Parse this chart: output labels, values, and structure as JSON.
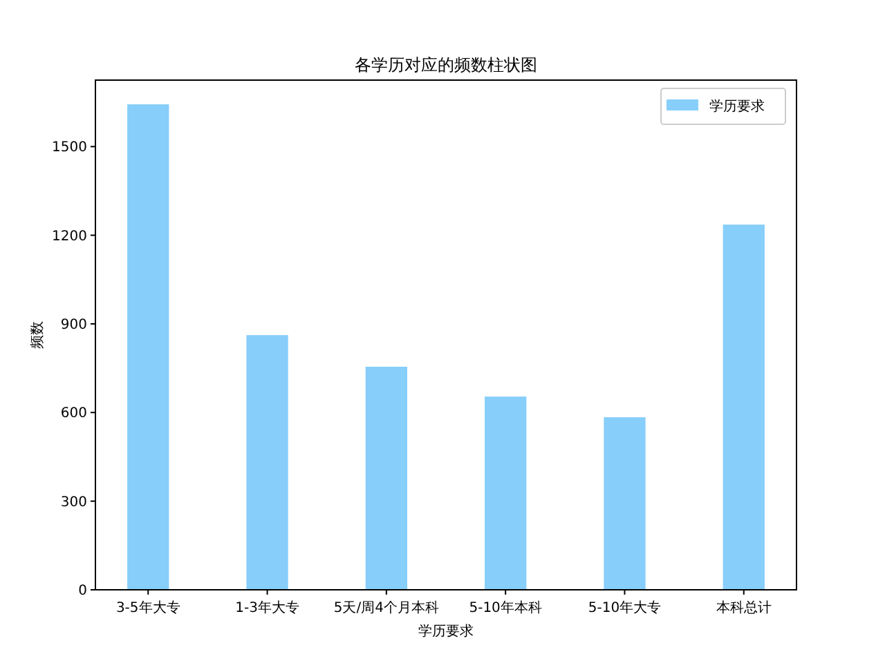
{
  "chart_data": {
    "type": "bar",
    "title": "各学历对应的频数柱状图",
    "xlabel": "学历要求",
    "ylabel": "频数",
    "categories": [
      "3-5年大专",
      "1-3年大专",
      "5天/周4个月本科",
      "5-10年本科",
      "5-10年大专",
      "本科总计"
    ],
    "series": [
      {
        "name": "学历要求",
        "color": "#87cefa",
        "values": [
          1643,
          862,
          755,
          654,
          584,
          1236
        ]
      }
    ],
    "ylim": [
      0,
      1725
    ],
    "yticks": [
      0,
      300,
      600,
      900,
      1200,
      1500
    ],
    "grid": false,
    "legend": "top right"
  }
}
